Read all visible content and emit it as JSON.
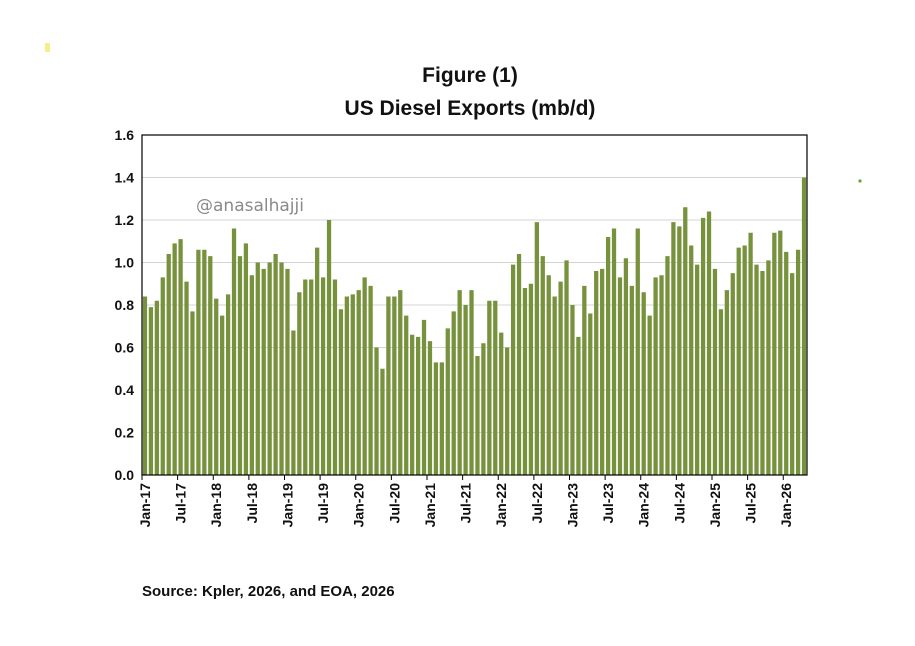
{
  "chart_data": {
    "type": "bar",
    "title": "Figure (1)",
    "subtitle": "US Diesel Exports (mb/d)",
    "watermark": "@anasalhajji",
    "source": "Source: Kpler, 2026, and EOA, 2026",
    "ylim": [
      0,
      1.6
    ],
    "yticks": [
      "0.0",
      "0.2",
      "0.4",
      "0.6",
      "0.8",
      "1.0",
      "1.2",
      "1.4",
      "1.6"
    ],
    "xtick_labels": [
      "Jan-17",
      "Jul-17",
      "Jan-18",
      "Jul-18",
      "Jan-19",
      "Jul-19",
      "Jan-20",
      "Jul-20",
      "Jan-21",
      "Jul-21",
      "Jan-22",
      "Jul-22",
      "Jan-23",
      "Jul-23",
      "Jan-24",
      "Jul-24",
      "Jan-25",
      "Jul-25",
      "Jan-26"
    ],
    "grid": true,
    "bar_color": "#77923c",
    "values": [
      0.84,
      0.79,
      0.82,
      0.93,
      1.04,
      1.09,
      1.11,
      0.91,
      0.77,
      1.06,
      1.06,
      1.03,
      0.83,
      0.75,
      0.85,
      1.16,
      1.03,
      1.09,
      0.94,
      1.0,
      0.97,
      1.0,
      1.04,
      1.0,
      0.97,
      0.68,
      0.86,
      0.92,
      0.92,
      1.07,
      0.93,
      1.2,
      0.92,
      0.78,
      0.84,
      0.85,
      0.87,
      0.93,
      0.89,
      0.6,
      0.5,
      0.84,
      0.84,
      0.87,
      0.75,
      0.66,
      0.65,
      0.73,
      0.63,
      0.53,
      0.53,
      0.69,
      0.77,
      0.87,
      0.8,
      0.87,
      0.56,
      0.62,
      0.82,
      0.82,
      0.67,
      0.6,
      0.99,
      1.04,
      0.88,
      0.9,
      1.19,
      1.03,
      0.94,
      0.84,
      0.91,
      1.01,
      0.8,
      0.65,
      0.89,
      0.76,
      0.96,
      0.97,
      1.12,
      1.16,
      0.93,
      1.02,
      0.89,
      1.16,
      0.86,
      0.75,
      0.93,
      0.94,
      1.03,
      1.19,
      1.17,
      1.26,
      1.08,
      0.99,
      1.21,
      1.24,
      0.97,
      0.78,
      0.87,
      0.95,
      1.07,
      1.08,
      1.14,
      0.99,
      0.96,
      1.01,
      1.14,
      1.15,
      1.05,
      0.95,
      1.06,
      1.4
    ]
  }
}
